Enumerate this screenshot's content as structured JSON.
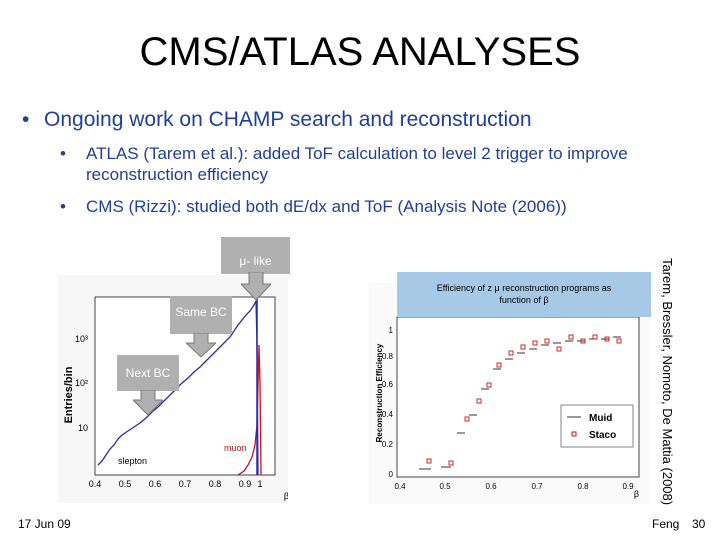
{
  "slide": {
    "title": "CMS/ATLAS ANALYSES",
    "bullet_main": "Ongoing work on CHAMP search and reconstruction",
    "sub_bullets": [
      "ATLAS (Tarem et al.): added ToF calculation to level 2 trigger to improve reconstruction efficiency",
      "CMS (Rizzi): studied both dE/dx and ToF (Analysis Note (2006))"
    ],
    "bullet_char": "•",
    "side_credit": "Tarem, Bressler, Nomoto, De Mattia (2008)",
    "footer": {
      "date": "17 Jun 09",
      "author": "Feng",
      "page": "30"
    }
  },
  "callouts": {
    "mu_like": "μ- like",
    "same_bc": "Same BC",
    "next_bc": "Next BC"
  },
  "left_plot": {
    "ylabel": "Entries/bin",
    "xlabel": "β",
    "muon_label": "muon",
    "slepton_label": "slepton",
    "xticks": [
      "0.4",
      "0.5",
      "0.6",
      "0.7",
      "0.8",
      "0.9",
      "1"
    ],
    "yticks": [
      "10³",
      "10²",
      "10"
    ]
  },
  "right_plot": {
    "ylabel": "Reconstruction Efficiency",
    "xlabel": "β",
    "box_text": "Efficiency of z μ reconstruction programs as function of β",
    "legend": [
      "Muid",
      "Staco"
    ],
    "xticks": [
      "0.4",
      "0.5",
      "0.6",
      "0.7",
      "0.8",
      "0.9"
    ],
    "yticks": [
      "0",
      "0.2",
      "0.4",
      "0.6",
      "0.8",
      "1"
    ]
  },
  "colors": {
    "bullet_text": "#1f3f99",
    "histogram_blue": "#2a2aa8",
    "histogram_red": "#cc1111",
    "callout": "#b0b0b0",
    "eff_box": "#a6c9e6"
  }
}
